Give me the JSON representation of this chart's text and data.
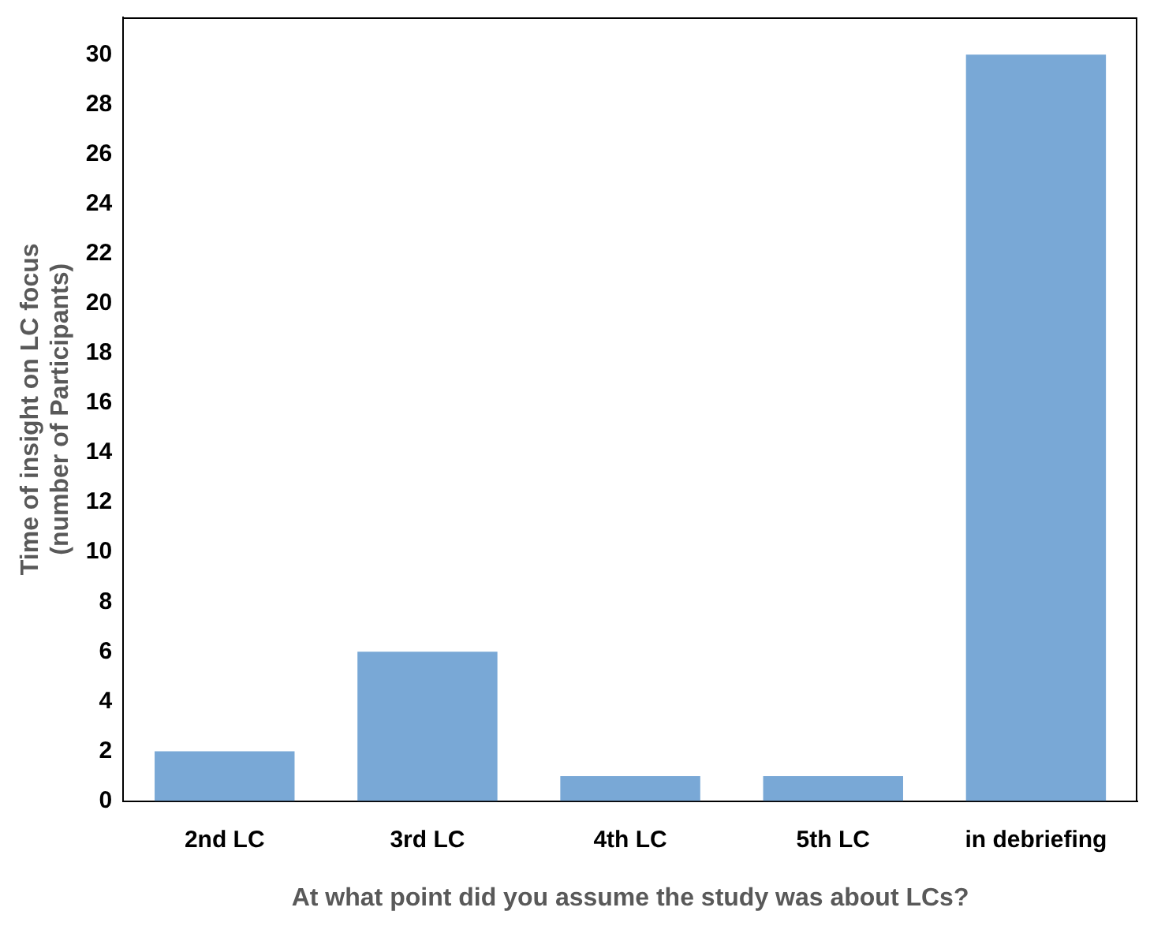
{
  "chart_data": {
    "type": "bar",
    "xlabel": "At what point did you assume the study was about LCs?",
    "ylabel": "Time of insight on LC focus (number of Participants)",
    "categories": [
      "2nd LC",
      "3rd LC",
      "4th LC",
      "5th LC",
      "in debriefing"
    ],
    "values": [
      2,
      6,
      1,
      1,
      30
    ],
    "color": "#79a8d6",
    "ylim": [
      0,
      31.5
    ],
    "yticks": [
      0,
      2,
      4,
      6,
      8,
      10,
      12,
      14,
      16,
      18,
      20,
      22,
      24,
      26,
      28,
      30
    ],
    "grid": false,
    "legend": false
  }
}
